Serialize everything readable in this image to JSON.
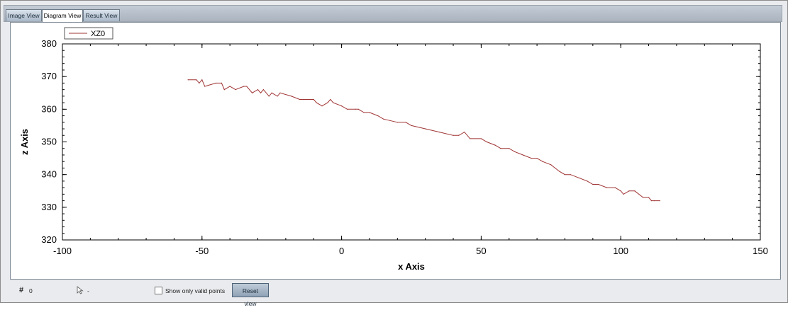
{
  "tabs": [
    {
      "label": "Image View",
      "active": false
    },
    {
      "label": "Diagram View",
      "active": true
    },
    {
      "label": "Result View",
      "active": false
    }
  ],
  "status": {
    "hash": "#",
    "count": "0",
    "cursor_value": "-",
    "valid_points_label": "Show only valid points",
    "valid_points_checked": false,
    "reset_label": "Reset view"
  },
  "chart_data": {
    "type": "line",
    "xlabel": "x Axis",
    "ylabel": "z Axis",
    "xlim": [
      -100,
      150
    ],
    "ylim": [
      320,
      380
    ],
    "xticks": [
      -100,
      -50,
      0,
      50,
      100,
      150
    ],
    "yticks": [
      320,
      330,
      340,
      350,
      360,
      370,
      380
    ],
    "legend_position": "top-left",
    "series": [
      {
        "name": "XZ0",
        "color": "#a03434",
        "x": [
          -55,
          -52,
          -51,
          -50,
          -49,
          -45,
          -43,
          -42,
          -40,
          -38,
          -35,
          -34,
          -32,
          -30,
          -29,
          -28,
          -26,
          -25,
          -23,
          -22,
          -18,
          -15,
          -10,
          -9,
          -7,
          -5,
          -4,
          -3,
          0,
          2,
          5,
          6,
          8,
          10,
          13,
          15,
          20,
          23,
          25,
          30,
          35,
          40,
          42,
          44,
          46,
          50,
          52,
          55,
          57,
          60,
          62,
          65,
          68,
          70,
          72,
          75,
          78,
          80,
          82,
          85,
          88,
          90,
          92,
          95,
          98,
          100,
          101,
          103,
          105,
          108,
          110,
          111,
          112,
          114
        ],
        "y": [
          369,
          369,
          368,
          369,
          367,
          368,
          368,
          366,
          367,
          366,
          367,
          367,
          365,
          366,
          365,
          366,
          364,
          365,
          364,
          365,
          364,
          363,
          363,
          362,
          361,
          362,
          363,
          362,
          361,
          360,
          360,
          360,
          359,
          359,
          358,
          357,
          356,
          356,
          355,
          354,
          353,
          352,
          352,
          353,
          351,
          351,
          350,
          349,
          348,
          348,
          347,
          346,
          345,
          345,
          344,
          343,
          341,
          340,
          340,
          339,
          338,
          337,
          337,
          336,
          336,
          335,
          334,
          335,
          335,
          333,
          333,
          332,
          332,
          332
        ]
      }
    ]
  }
}
